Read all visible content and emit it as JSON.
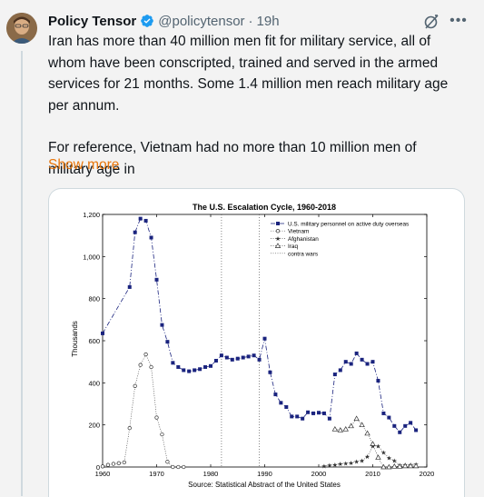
{
  "tweet": {
    "author_name": "Policy Tensor",
    "author_handle": "@policytensor",
    "separator": "·",
    "time": "19h",
    "text_p1": "Iran has more than 40 million men fit for military service, all of whom have been conscripted, trained and served in the armed services for 21 months. Some 1.4 million men reach military age per annum.",
    "text_p2": "For reference, Vietnam had no more than 10 million men of military age in",
    "show_more": "Show more",
    "icons": {
      "verified": "verified-badge-icon",
      "grok": "grok-icon",
      "more": "more-options-icon"
    },
    "colors": {
      "link": "#e8760b",
      "verified": "#1d9bf0",
      "muted": "#536471"
    }
  },
  "chart_data": {
    "type": "line",
    "title": "The U.S. Escalation Cycle, 1960-2018",
    "ylabel": "Thousands",
    "source": "Source: Statistical Abstract of the United States",
    "xlim": [
      1960,
      2020
    ],
    "ylim": [
      0,
      1200
    ],
    "xticks": [
      "1960",
      "1970",
      "1980",
      "1990",
      "2000",
      "2010",
      "2020"
    ],
    "yticks": [
      "0",
      "200",
      "400",
      "600",
      "800",
      "1,000",
      "1,200"
    ],
    "legend_position": "top-right",
    "legend": [
      "U.S. military personnel on active duty overseas",
      "Vietnam",
      "Afghanistan",
      "Iraq",
      "contra wars"
    ],
    "series": [
      {
        "name": "U.S. military personnel on active duty overseas",
        "marker": "square",
        "color": "#1a237e",
        "points": [
          [
            1960,
            635
          ],
          [
            1965,
            855
          ],
          [
            1966,
            1115
          ],
          [
            1967,
            1180
          ],
          [
            1968,
            1170
          ],
          [
            1969,
            1090
          ],
          [
            1970,
            890
          ],
          [
            1971,
            675
          ],
          [
            1972,
            595
          ],
          [
            1973,
            495
          ],
          [
            1974,
            475
          ],
          [
            1975,
            460
          ],
          [
            1976,
            455
          ],
          [
            1977,
            460
          ],
          [
            1978,
            465
          ],
          [
            1979,
            475
          ],
          [
            1980,
            480
          ],
          [
            1981,
            505
          ],
          [
            1982,
            530
          ],
          [
            1983,
            520
          ],
          [
            1984,
            510
          ],
          [
            1985,
            515
          ],
          [
            1986,
            520
          ],
          [
            1987,
            525
          ],
          [
            1988,
            530
          ],
          [
            1989,
            510
          ],
          [
            1990,
            610
          ],
          [
            1991,
            450
          ],
          [
            1992,
            345
          ],
          [
            1993,
            305
          ],
          [
            1994,
            285
          ],
          [
            1995,
            240
          ],
          [
            1996,
            240
          ],
          [
            1997,
            230
          ],
          [
            1998,
            260
          ],
          [
            1999,
            255
          ],
          [
            2000,
            258
          ],
          [
            2001,
            255
          ],
          [
            2002,
            230
          ],
          [
            2003,
            440
          ],
          [
            2004,
            460
          ],
          [
            2005,
            500
          ],
          [
            2006,
            490
          ],
          [
            2007,
            540
          ],
          [
            2008,
            510
          ],
          [
            2009,
            490
          ],
          [
            2010,
            500
          ],
          [
            2011,
            410
          ],
          [
            2012,
            255
          ],
          [
            2013,
            235
          ],
          [
            2014,
            195
          ],
          [
            2015,
            165
          ],
          [
            2016,
            195
          ],
          [
            2017,
            210
          ],
          [
            2018,
            175
          ]
        ]
      },
      {
        "name": "Vietnam",
        "marker": "circle",
        "color": "#333333",
        "points": [
          [
            1960,
            3
          ],
          [
            1961,
            10
          ],
          [
            1962,
            15
          ],
          [
            1963,
            18
          ],
          [
            1964,
            22
          ],
          [
            1965,
            185
          ],
          [
            1966,
            385
          ],
          [
            1967,
            485
          ],
          [
            1968,
            535
          ],
          [
            1969,
            475
          ],
          [
            1970,
            235
          ],
          [
            1971,
            155
          ],
          [
            1972,
            25
          ],
          [
            1973,
            0
          ],
          [
            1974,
            0
          ],
          [
            1975,
            0
          ]
        ]
      },
      {
        "name": "Afghanistan",
        "marker": "star",
        "color": "#333333",
        "points": [
          [
            2001,
            5
          ],
          [
            2002,
            8
          ],
          [
            2003,
            10
          ],
          [
            2004,
            15
          ],
          [
            2005,
            18
          ],
          [
            2006,
            20
          ],
          [
            2007,
            25
          ],
          [
            2008,
            30
          ],
          [
            2009,
            50
          ],
          [
            2010,
            100
          ],
          [
            2011,
            100
          ],
          [
            2012,
            68
          ],
          [
            2013,
            43
          ],
          [
            2014,
            30
          ],
          [
            2015,
            9
          ],
          [
            2016,
            10
          ],
          [
            2017,
            11
          ],
          [
            2018,
            14
          ]
        ]
      },
      {
        "name": "Iraq",
        "marker": "triangle",
        "color": "#333333",
        "points": [
          [
            2003,
            180
          ],
          [
            2004,
            175
          ],
          [
            2005,
            180
          ],
          [
            2006,
            195
          ],
          [
            2007,
            230
          ],
          [
            2008,
            200
          ],
          [
            2009,
            160
          ],
          [
            2010,
            110
          ],
          [
            2011,
            45
          ],
          [
            2012,
            0
          ],
          [
            2013,
            0
          ],
          [
            2014,
            3
          ],
          [
            2015,
            3
          ],
          [
            2016,
            5
          ],
          [
            2017,
            5
          ],
          [
            2018,
            5
          ]
        ]
      }
    ],
    "vlines": [
      1982,
      1989
    ]
  }
}
